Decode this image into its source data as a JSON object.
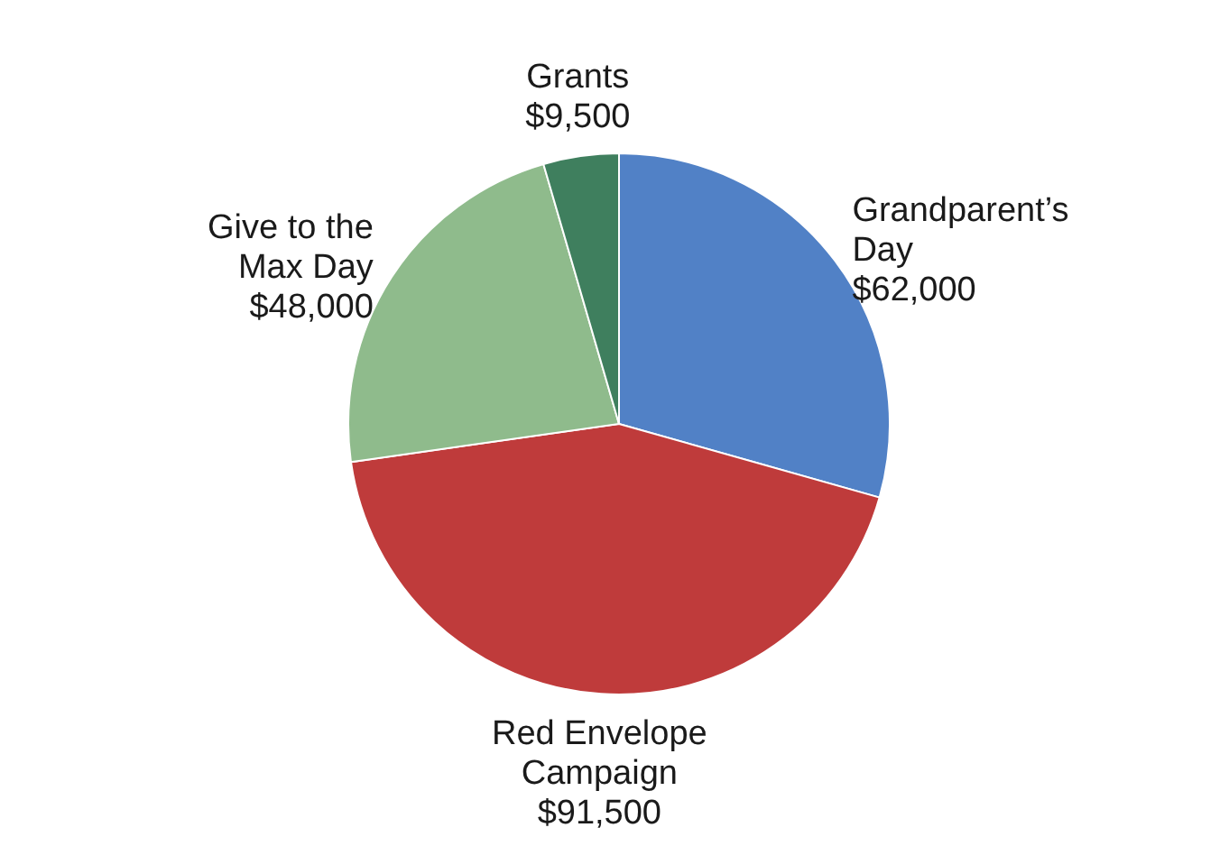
{
  "chart_data": {
    "type": "pie",
    "categories": [
      "Grandparent’s Day",
      "Red Envelope Campaign",
      "Give to the Max Day",
      "Grants"
    ],
    "values": [
      62000,
      91500,
      48000,
      9500
    ],
    "value_labels": [
      "$62,000",
      "$91,500",
      "$48,000",
      "$9,500"
    ],
    "colors": [
      "#5181c6",
      "#bf3b3b",
      "#8fbb8c",
      "#3f7f5e"
    ],
    "legend": false
  }
}
